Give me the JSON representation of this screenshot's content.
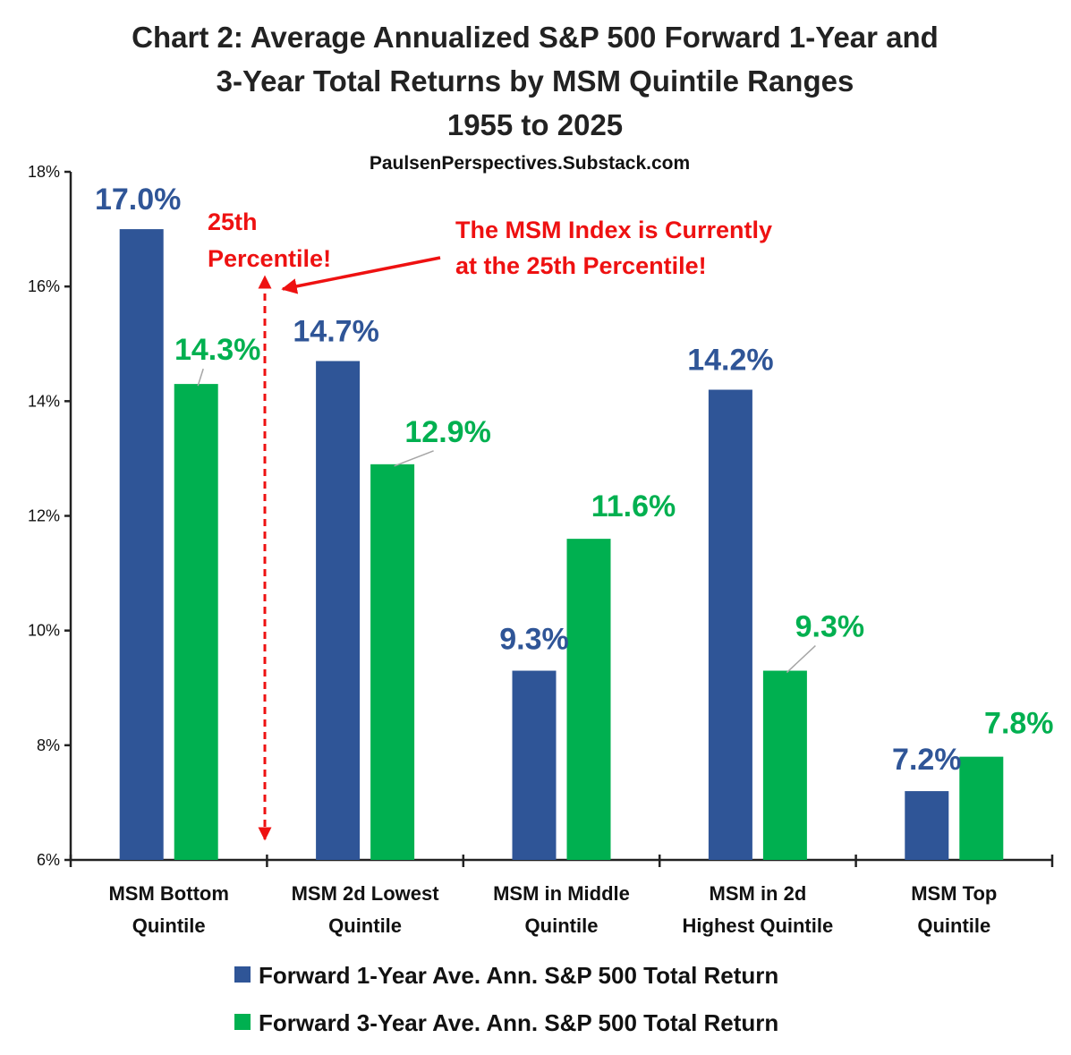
{
  "chart_data": {
    "type": "bar",
    "title": [
      "Chart 2: Average Annualized S&P 500 Forward 1-Year and",
      "3-Year Total Returns by MSM Quintile Ranges",
      "1955 to 2025"
    ],
    "subtitle": "PaulsenPerspectives.Substack.com",
    "categories": [
      [
        "MSM Bottom",
        "Quintile"
      ],
      [
        "MSM 2d Lowest",
        "Quintile"
      ],
      [
        "MSM in Middle",
        "Quintile"
      ],
      [
        "MSM in 2d",
        "Highest Quintile"
      ],
      [
        "MSM Top",
        "Quintile"
      ]
    ],
    "series": [
      {
        "name": "Forward 1-Year Ave. Ann. S&P 500 Total Return",
        "color": "#2f5597",
        "values": [
          17.0,
          14.7,
          9.3,
          14.2,
          7.2
        ],
        "labels": [
          "17.0%",
          "14.7%",
          "9.3%",
          "14.2%",
          "7.2%"
        ]
      },
      {
        "name": "Forward 3-Year Ave. Ann. S&P 500 Total Return",
        "color": "#00b050",
        "values": [
          14.3,
          12.9,
          11.6,
          9.3,
          7.8
        ],
        "labels": [
          "14.3%",
          "12.9%",
          "11.6%",
          "9.3%",
          "7.8%"
        ]
      }
    ],
    "ylim": [
      6,
      18
    ],
    "yticks": [
      6,
      8,
      10,
      12,
      14,
      16,
      18
    ],
    "ytick_labels": [
      "6%",
      "8%",
      "10%",
      "12%",
      "14%",
      "16%",
      "18%"
    ],
    "grid": false,
    "legend_position": "bottom",
    "annotations": {
      "percentile_label": [
        "25th",
        "Percentile!"
      ],
      "callout": [
        "The MSM Index is Currently",
        "at the 25th Percentile!"
      ],
      "color": "#ee1111"
    }
  }
}
